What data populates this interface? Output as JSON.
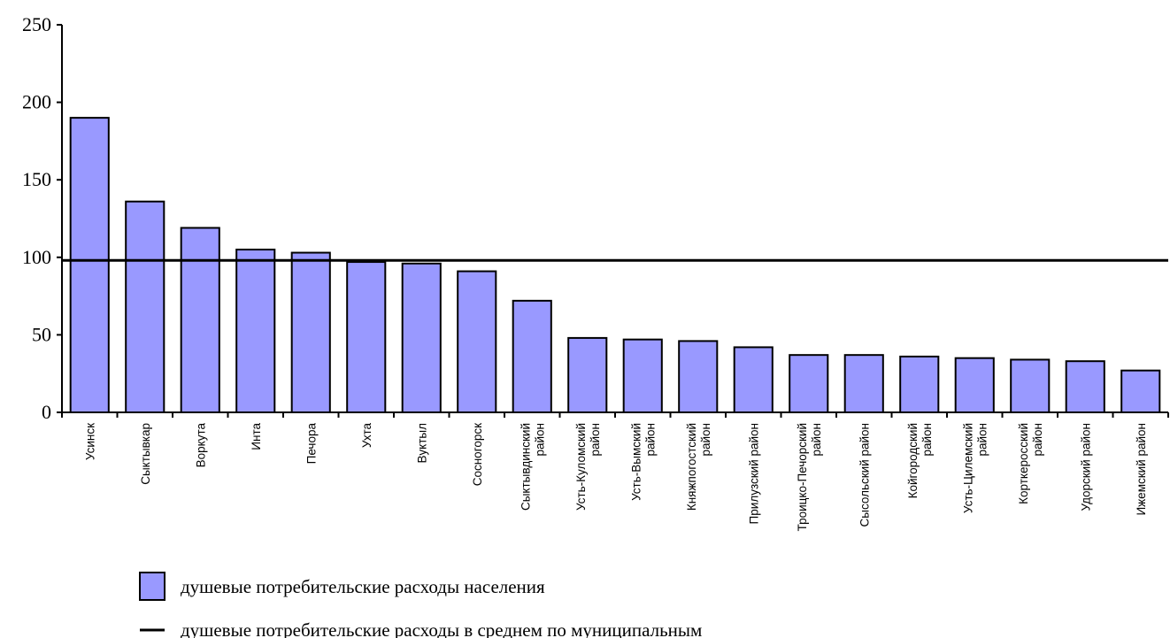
{
  "chart_data": {
    "type": "bar",
    "categories": [
      [
        "Усинск"
      ],
      [
        "Сыктывкар"
      ],
      [
        "Воркута"
      ],
      [
        "Инта"
      ],
      [
        "Печора"
      ],
      [
        "Ухта"
      ],
      [
        "Вуктыл"
      ],
      [
        "Сосногорск"
      ],
      [
        "Сыктывдинский",
        "район"
      ],
      [
        "Усть-Куломский",
        "район"
      ],
      [
        "Усть-Вымский",
        "район"
      ],
      [
        "Княжпогостский",
        "район"
      ],
      [
        "Прилузский район"
      ],
      [
        "Троицко-Печорский",
        "район"
      ],
      [
        "Сысольский район"
      ],
      [
        "Койгородский",
        "район"
      ],
      [
        "Усть-Цилемский",
        "район"
      ],
      [
        "Корткеросский",
        "район"
      ],
      [
        "Удорский район"
      ],
      [
        "Ижемский район"
      ]
    ],
    "series": [
      {
        "name": "душевые потребительские расходы населения",
        "values": [
          190,
          136,
          119,
          105,
          103,
          97,
          96,
          91,
          72,
          48,
          47,
          46,
          42,
          37,
          37,
          36,
          35,
          34,
          33,
          27
        ]
      }
    ],
    "reference_line": {
      "name": "душевые потребительские расходы в среднем по муниципальным",
      "value": 98
    },
    "ylim": [
      0,
      250
    ],
    "yticks": [
      "0",
      "50",
      "100",
      "150",
      "200",
      "250"
    ],
    "bar_color": "#9999ff",
    "line_color": "#000000",
    "grid": false,
    "legend_position": "bottom-left"
  }
}
